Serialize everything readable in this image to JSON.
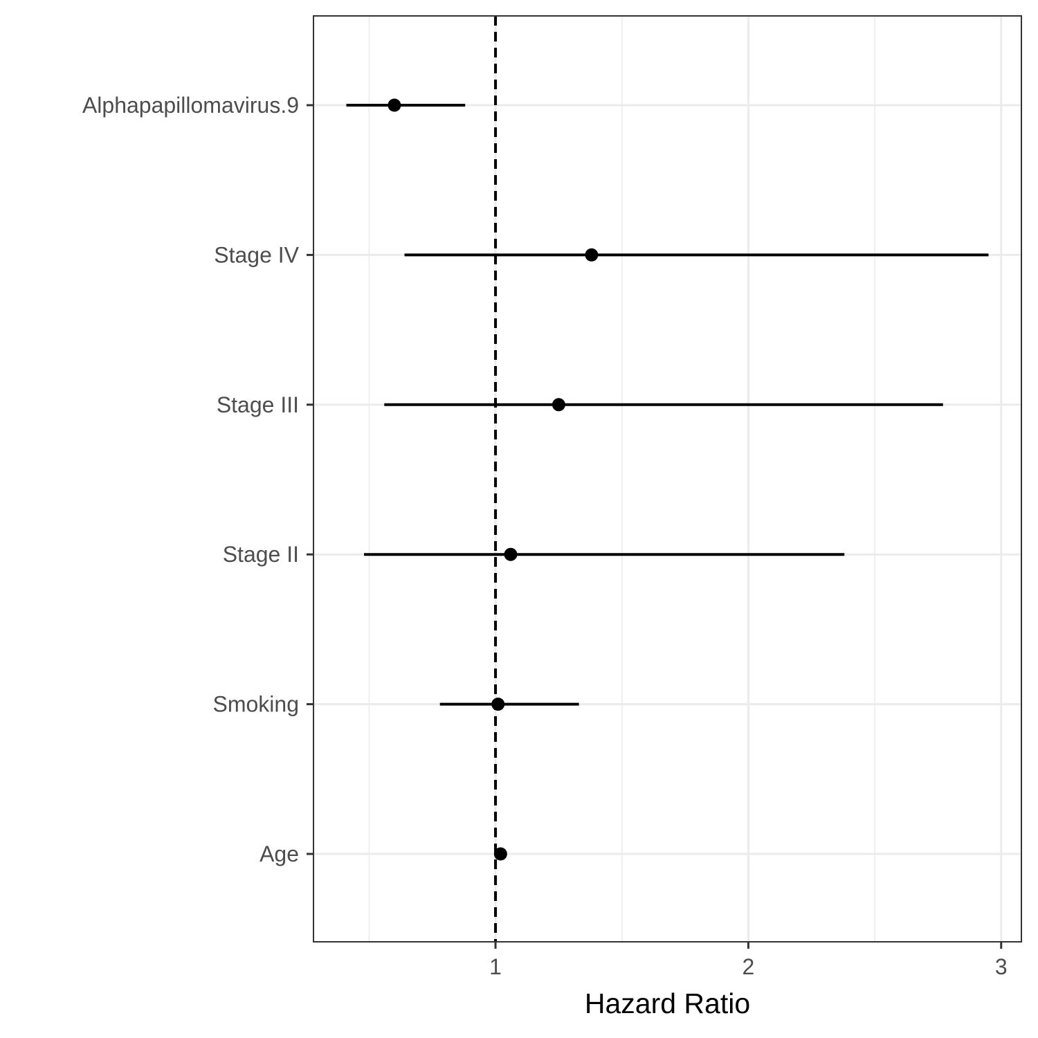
{
  "chart_data": {
    "type": "scatter",
    "subtype": "forest-plot",
    "title": "",
    "xlabel": "Hazard Ratio",
    "ylabel": "",
    "xlim": [
      0.28,
      3.08
    ],
    "x_ticks": [
      1,
      2,
      3
    ],
    "x_minor_ticks": [
      0.5,
      1.5,
      2.5
    ],
    "reference_line": {
      "x": 1,
      "style": "dashed",
      "color": "#000000"
    },
    "grid": true,
    "legend": "none",
    "colors": {
      "point": "#000000",
      "interval": "#000000",
      "grid": "#ebebeb",
      "panel_border": "#333333"
    },
    "categories": [
      "Alphapapillomavirus.9",
      "Stage IV",
      "Stage III",
      "Stage II",
      "Smoking",
      "Age"
    ],
    "points": [
      {
        "label": "Alphapapillomavirus.9",
        "hr": 0.6,
        "lower": 0.41,
        "upper": 0.88
      },
      {
        "label": "Stage IV",
        "hr": 1.38,
        "lower": 0.64,
        "upper": 2.95
      },
      {
        "label": "Stage III",
        "hr": 1.25,
        "lower": 0.56,
        "upper": 2.77
      },
      {
        "label": "Stage II",
        "hr": 1.06,
        "lower": 0.48,
        "upper": 2.38
      },
      {
        "label": "Smoking",
        "hr": 1.01,
        "lower": 0.78,
        "upper": 1.33
      },
      {
        "label": "Age",
        "hr": 1.02,
        "lower": 1.0,
        "upper": 1.04
      }
    ]
  }
}
